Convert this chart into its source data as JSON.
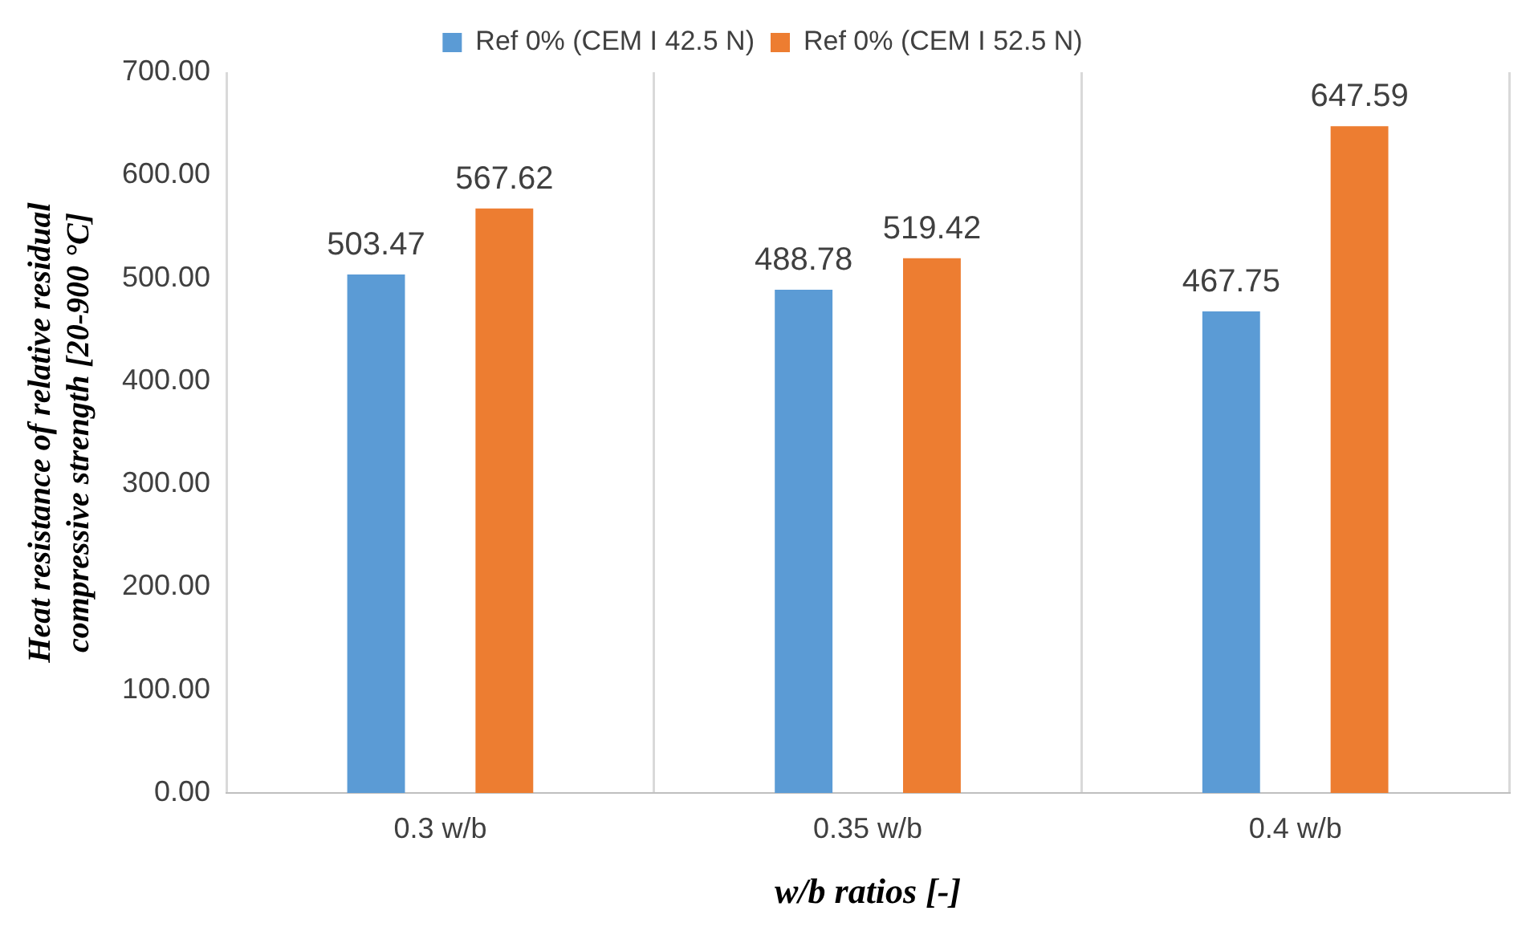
{
  "chart_data": {
    "type": "bar",
    "xlabel": "w/b ratios [-]",
    "ylabel": "Heat resistance of relative residual compressive strength [20-900 °C]",
    "categories": [
      "0.3 w/b",
      "0.35 w/b",
      "0.4 w/b"
    ],
    "series": [
      {
        "name": "Ref 0% (CEM I 42.5 N)",
        "color": "#5b9bd5",
        "values": [
          503.47,
          488.78,
          467.75
        ]
      },
      {
        "name": "Ref 0% (CEM I 52.5 N)",
        "color": "#ed7d31",
        "values": [
          567.62,
          519.42,
          647.59
        ]
      }
    ],
    "ylim": [
      0,
      700
    ],
    "yticks": [
      {
        "value": 0,
        "label": "0.00"
      },
      {
        "value": 100,
        "label": "100.00"
      },
      {
        "value": 200,
        "label": "200.00"
      },
      {
        "value": 300,
        "label": "300.00"
      },
      {
        "value": 400,
        "label": "400.00"
      },
      {
        "value": 500,
        "label": "500.00"
      },
      {
        "value": 600,
        "label": "600.00"
      },
      {
        "value": 700,
        "label": "700.00"
      }
    ],
    "grid": "x",
    "legend": "top",
    "data_labels": true
  }
}
